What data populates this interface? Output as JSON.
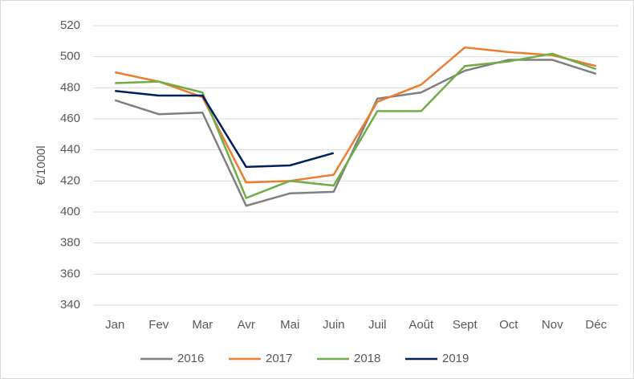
{
  "chart_data": {
    "type": "line",
    "y_label": "€/1000l",
    "categories": [
      "Jan",
      "Fev",
      "Mar",
      "Avr",
      "Mai",
      "Juin",
      "Juil",
      "Août",
      "Sept",
      "Oct",
      "Nov",
      "Déc"
    ],
    "series": [
      {
        "name": "2016",
        "color": "#7f7f7f",
        "values": [
          472,
          463,
          464,
          404,
          412,
          413,
          473,
          477,
          491,
          498,
          498,
          489
        ]
      },
      {
        "name": "2017",
        "color": "#ed7d31",
        "values": [
          490,
          484,
          474,
          419,
          420,
          424,
          471,
          482,
          506,
          503,
          501,
          494
        ]
      },
      {
        "name": "2018",
        "color": "#70ad47",
        "values": [
          483,
          484,
          477,
          409,
          420,
          417,
          465,
          465,
          494,
          497,
          502,
          492
        ]
      },
      {
        "name": "2019",
        "color": "#002060",
        "values": [
          478,
          475,
          475,
          429,
          430,
          438,
          null,
          null,
          null,
          null,
          null,
          null
        ]
      }
    ],
    "ylim": [
      340,
      520
    ],
    "yticks": [
      340,
      360,
      380,
      400,
      420,
      440,
      460,
      480,
      500,
      520
    ],
    "grid": true,
    "legend": "bottom"
  }
}
